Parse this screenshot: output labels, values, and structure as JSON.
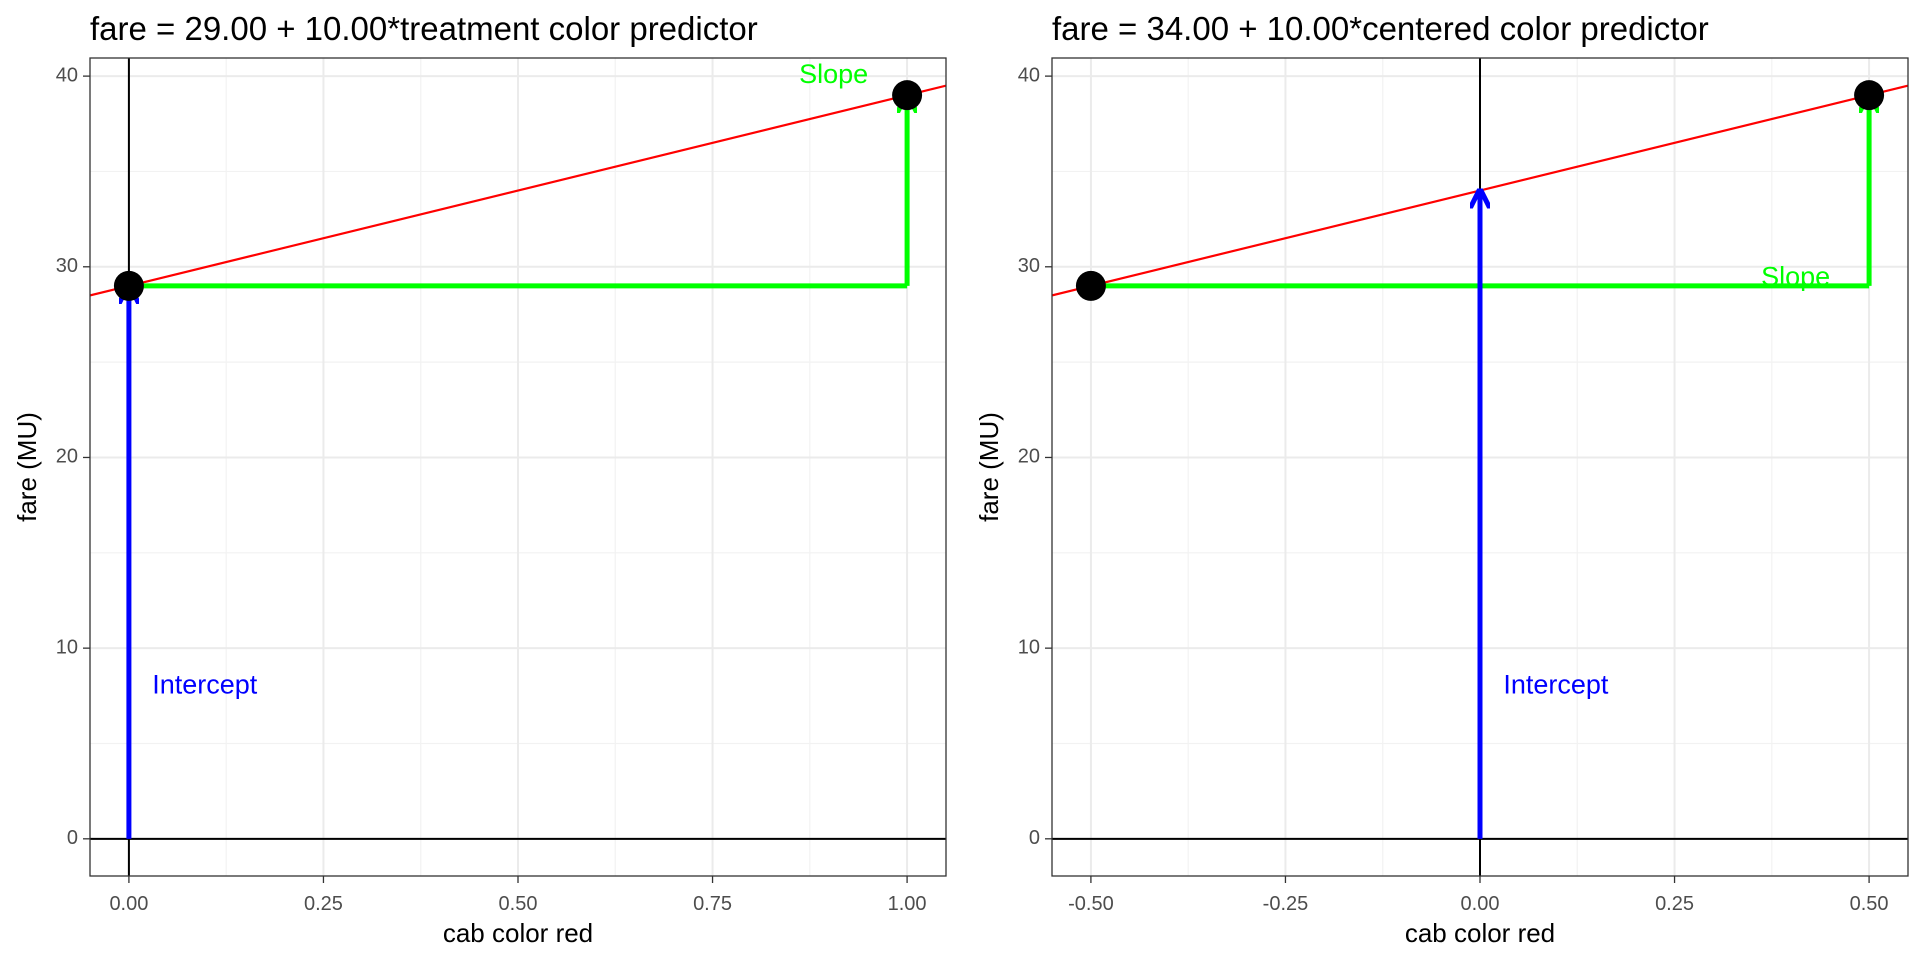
{
  "chart_data": [
    {
      "type": "scatter",
      "title": "fare = 29.00 + 10.00*treatment color predictor",
      "xlabel": "cab color red",
      "ylabel": "fare (MU)",
      "xlim": [
        -0.05,
        1.05
      ],
      "ylim": [
        -1.95,
        40.95
      ],
      "x_ticks": [
        0.0,
        0.25,
        0.5,
        0.75,
        1.0
      ],
      "x_tick_labels": [
        "0.00",
        "0.25",
        "0.50",
        "0.75",
        "1.00"
      ],
      "y_ticks": [
        0,
        10,
        20,
        30,
        40
      ],
      "y_tick_labels": [
        "0",
        "10",
        "20",
        "30",
        "40"
      ],
      "grid": true,
      "points": [
        {
          "x": 0,
          "y": 29
        },
        {
          "x": 1,
          "y": 39
        }
      ],
      "regression_line": {
        "intercept": 29,
        "slope": 10,
        "color": "#ff0000"
      },
      "ref_lines": {
        "vertical_x": 0,
        "horizontal_y": 0
      },
      "intercept_arrow": {
        "x": 0,
        "y_from": 0,
        "y_to": 29,
        "color": "#0000ff"
      },
      "slope_path": {
        "x_from": 0,
        "x_to": 1,
        "y_from": 29,
        "y_to": 39,
        "color": "#00ff00"
      },
      "annotations": [
        {
          "text": "Intercept",
          "x": 0.03,
          "y": 8,
          "anchor": "start",
          "color": "#0000ff"
        },
        {
          "text": "Slope",
          "x": 0.95,
          "y": 40,
          "anchor": "end",
          "color": "#00ff00"
        }
      ]
    },
    {
      "type": "scatter",
      "title": "fare = 34.00 + 10.00*centered color predictor",
      "xlabel": "cab color red",
      "ylabel": "fare (MU)",
      "xlim": [
        -0.55,
        0.55
      ],
      "ylim": [
        -1.95,
        40.95
      ],
      "x_ticks": [
        -0.5,
        -0.25,
        0.0,
        0.25,
        0.5
      ],
      "x_tick_labels": [
        "-0.50",
        "-0.25",
        "0.00",
        "0.25",
        "0.50"
      ],
      "y_ticks": [
        0,
        10,
        20,
        30,
        40
      ],
      "y_tick_labels": [
        "0",
        "10",
        "20",
        "30",
        "40"
      ],
      "grid": true,
      "points": [
        {
          "x": -0.5,
          "y": 29
        },
        {
          "x": 0.5,
          "y": 39
        }
      ],
      "regression_line": {
        "intercept": 34,
        "slope": 10,
        "color": "#ff0000"
      },
      "ref_lines": {
        "vertical_x": 0,
        "horizontal_y": 0
      },
      "intercept_arrow": {
        "x": 0,
        "y_from": 0,
        "y_to": 34,
        "color": "#0000ff"
      },
      "slope_path": {
        "x_from": -0.5,
        "x_to": 0.5,
        "y_from": 29,
        "y_to": 39,
        "color": "#00ff00"
      },
      "annotations": [
        {
          "text": "Intercept",
          "x": 0.03,
          "y": 8,
          "anchor": "start",
          "color": "#0000ff"
        },
        {
          "text": "Slope",
          "x": 0.45,
          "y": 29.4,
          "anchor": "end",
          "color": "#00ff00"
        }
      ]
    }
  ]
}
